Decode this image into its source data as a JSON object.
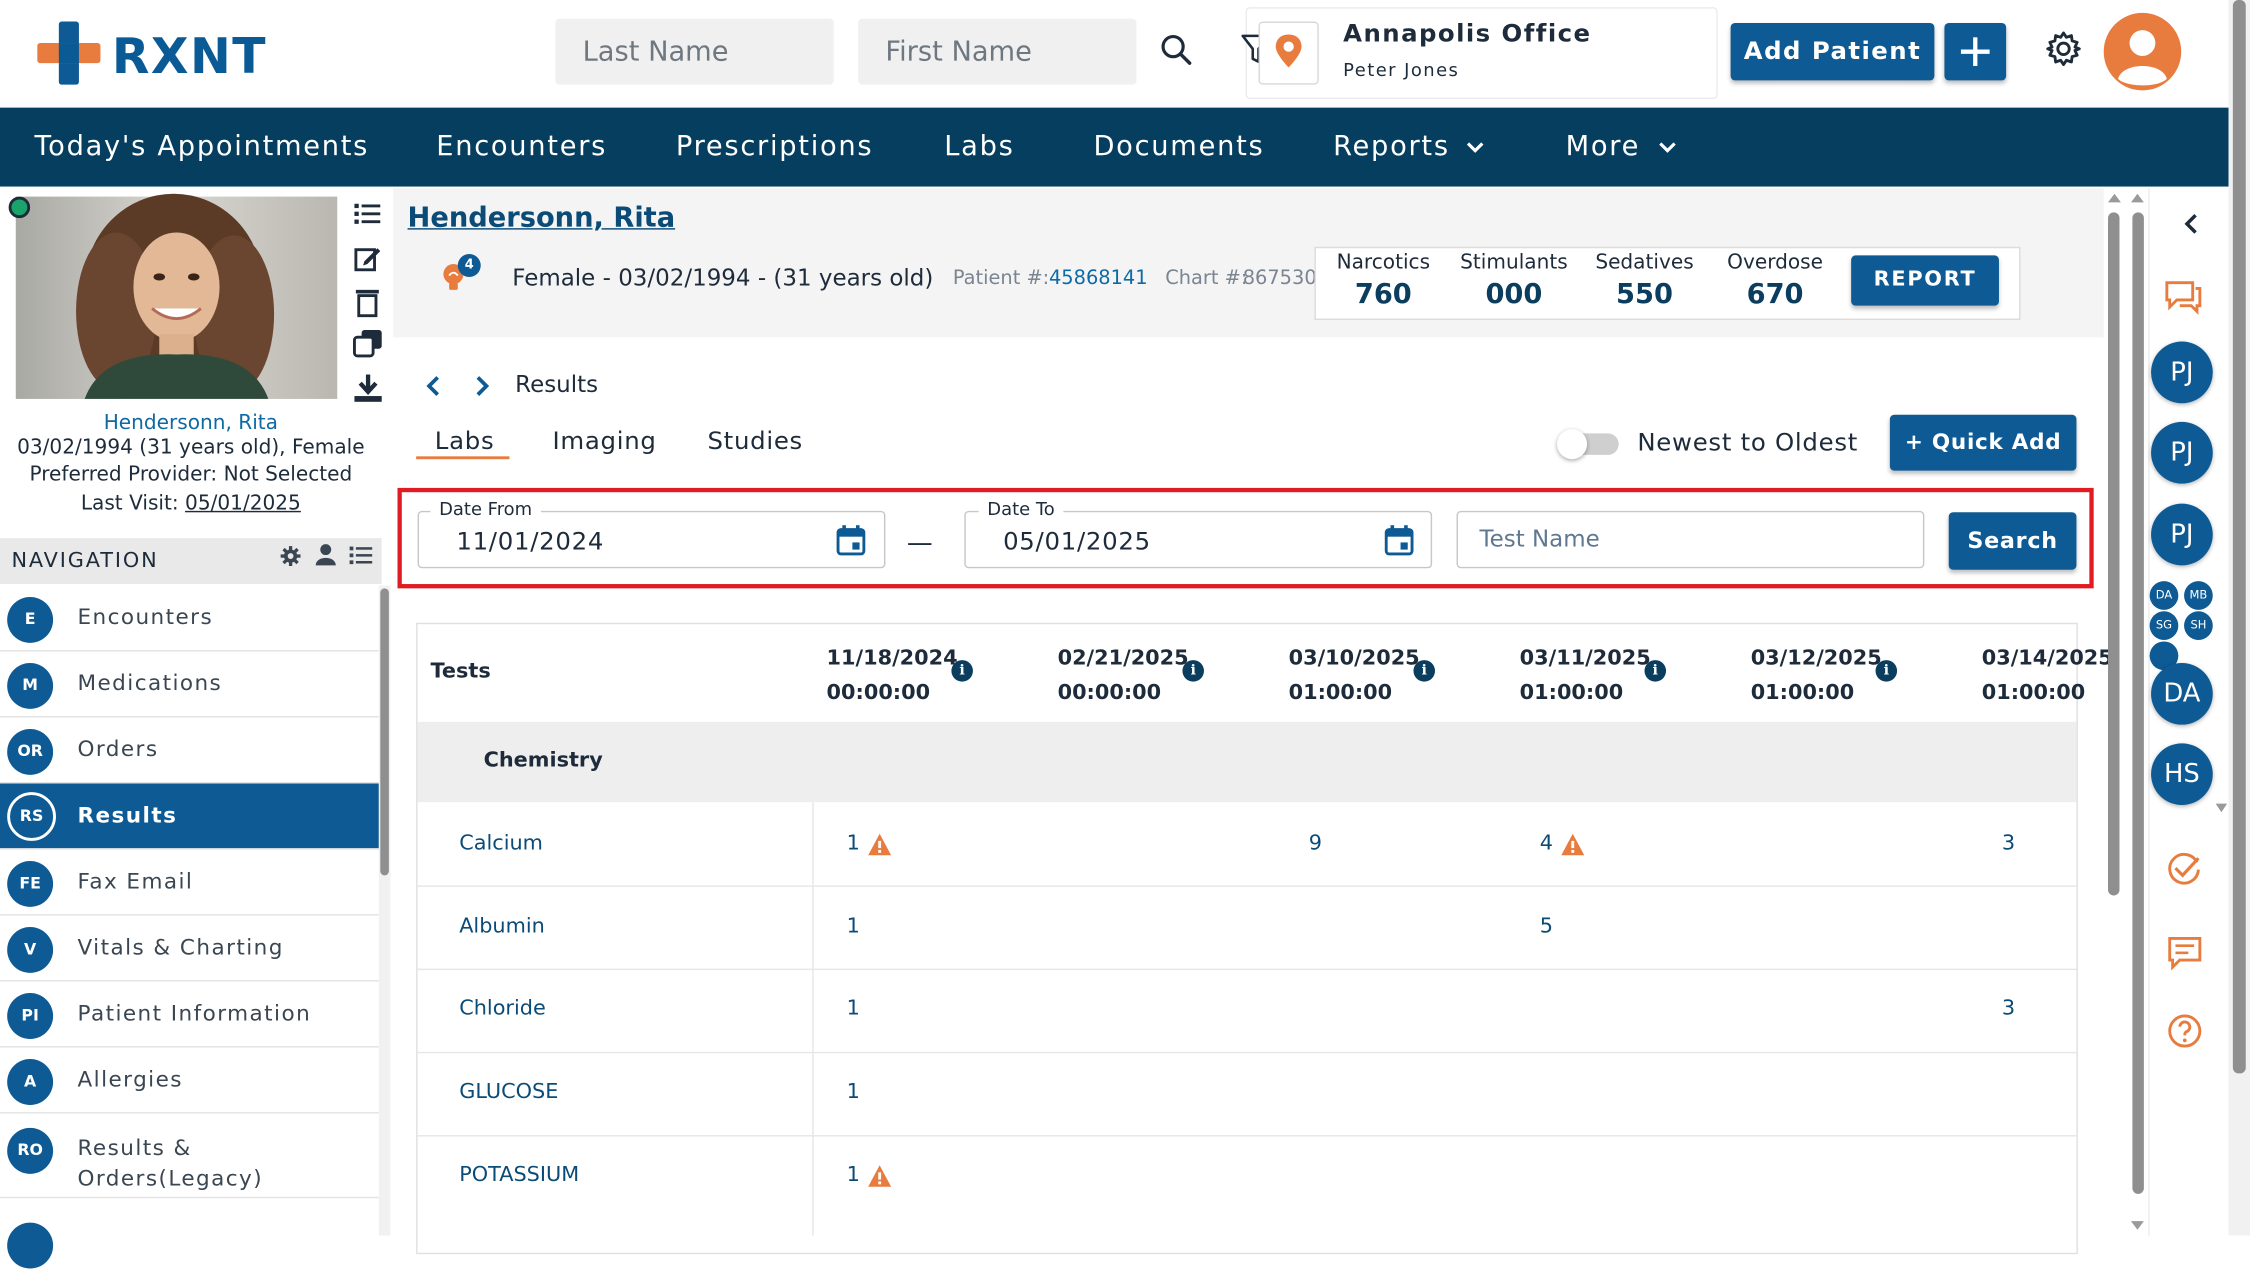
{
  "header": {
    "logo_text": "RXNT",
    "last_name_placeholder": "Last Name",
    "first_name_placeholder": "First Name",
    "office_name": "Annapolis Office",
    "office_user": "Peter Jones",
    "add_patient_label": "Add Patient"
  },
  "nav": {
    "items": [
      "Today's Appointments",
      "Encounters",
      "Prescriptions",
      "Labs",
      "Documents",
      "Reports",
      "More"
    ]
  },
  "sidebar": {
    "patient_name": "Hendersonn, Rita",
    "patient_dob": "03/02/1994 (31 years old), Female",
    "preferred_provider": "Preferred Provider: Not Selected",
    "last_visit_label": "Last Visit:",
    "last_visit_date": "05/01/2025",
    "navigation_title": "NAVIGATION",
    "nav_items": [
      {
        "abbr": "E",
        "label": "Encounters"
      },
      {
        "abbr": "M",
        "label": "Medications"
      },
      {
        "abbr": "OR",
        "label": "Orders"
      },
      {
        "abbr": "RS",
        "label": "Results"
      },
      {
        "abbr": "FE",
        "label": "Fax Email"
      },
      {
        "abbr": "V",
        "label": "Vitals & Charting"
      },
      {
        "abbr": "PI",
        "label": "Patient Information"
      },
      {
        "abbr": "A",
        "label": "Allergies"
      },
      {
        "abbr": "RO",
        "label": "Results &",
        "label2": "Orders(Legacy)"
      }
    ]
  },
  "patient": {
    "name": "Hendersonn, Rita",
    "badge_count": "4",
    "summary": "Female - 03/02/1994 - (31 years old)",
    "patient_num_label": "Patient #:",
    "patient_num": "45868141",
    "chart_num_label": "Chart #:",
    "chart_num": "867530"
  },
  "pdmp": {
    "narcotics_label": "Narcotics",
    "narcotics": "760",
    "stimulants_label": "Stimulants",
    "stimulants": "000",
    "sedatives_label": "Sedatives",
    "sedatives": "550",
    "overdose_label": "Overdose",
    "overdose": "670",
    "report_label": "REPORT"
  },
  "results": {
    "breadcrumb": "Results",
    "tabs": [
      "Labs",
      "Imaging",
      "Studies"
    ],
    "sort_label": "Newest to Oldest",
    "quick_add_label": "+ Quick Add",
    "date_from_label": "Date From",
    "date_from": "11/01/2024",
    "date_to_label": "Date To",
    "date_to": "05/01/2025",
    "date_sep": "—",
    "test_name_placeholder": "Test Name",
    "search_label": "Search"
  },
  "table": {
    "tests_header": "Tests",
    "columns": [
      {
        "date": "11/18/2024",
        "time": "00:00:00"
      },
      {
        "date": "02/21/2025",
        "time": "00:00:00"
      },
      {
        "date": "03/10/2025",
        "time": "01:00:00"
      },
      {
        "date": "03/11/2025",
        "time": "01:00:00"
      },
      {
        "date": "03/12/2025",
        "time": "01:00:00"
      },
      {
        "date": "03/14/2025",
        "time": "01:00:00"
      }
    ],
    "group": "Chemistry",
    "rows": [
      {
        "name": "Calcium",
        "values": [
          "1",
          "",
          "9",
          "4",
          "",
          "3"
        ],
        "alerts": [
          true,
          false,
          false,
          true,
          false,
          false
        ]
      },
      {
        "name": "Albumin",
        "values": [
          "1",
          "",
          "",
          "5",
          "",
          ""
        ],
        "alerts": [
          false,
          false,
          false,
          false,
          false,
          false
        ]
      },
      {
        "name": "Chloride",
        "values": [
          "1",
          "",
          "",
          "",
          "",
          "3"
        ],
        "alerts": [
          false,
          false,
          false,
          false,
          false,
          false
        ]
      },
      {
        "name": "GLUCOSE",
        "values": [
          "1",
          "",
          "",
          "",
          "",
          ""
        ],
        "alerts": [
          false,
          false,
          false,
          false,
          false,
          false
        ]
      },
      {
        "name": "POTASSIUM",
        "values": [
          "1",
          "",
          "",
          "",
          "",
          ""
        ],
        "alerts": [
          true,
          false,
          false,
          false,
          false,
          false
        ]
      }
    ]
  },
  "rail": {
    "avatars_top": [
      "PJ",
      "PJ",
      "PJ"
    ],
    "avatars_small": [
      "DA",
      "MB",
      "SG",
      "SH"
    ],
    "avatars_bottom": [
      "DA",
      "HS"
    ]
  },
  "colors": {
    "brand_blue": "#0d5a94",
    "navbar": "#063e5f",
    "accent_orange": "#e87c3e",
    "alert_red": "#e11b22"
  }
}
